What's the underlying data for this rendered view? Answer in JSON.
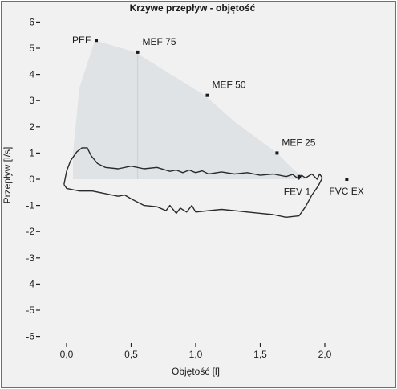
{
  "chart_data": {
    "type": "line",
    "title": "Krzywe przepływ - objętość",
    "xlabel": "Objętość [l]",
    "ylabel": "Przepływ [l/s]",
    "xlim": [
      -0.15,
      2.3
    ],
    "ylim": [
      -6.3,
      6.3
    ],
    "x_ticks": [
      {
        "value": 0.0,
        "label": "0,0"
      },
      {
        "value": 0.5,
        "label": "0,5"
      },
      {
        "value": 1.0,
        "label": "1,0"
      },
      {
        "value": 1.5,
        "label": "1,5"
      },
      {
        "value": 2.0,
        "label": "2,0"
      }
    ],
    "y_ticks": [
      {
        "value": 6,
        "label": "6"
      },
      {
        "value": 5,
        "label": "5"
      },
      {
        "value": 4,
        "label": "4"
      },
      {
        "value": 3,
        "label": "3"
      },
      {
        "value": 2,
        "label": "2"
      },
      {
        "value": 1,
        "label": "1"
      },
      {
        "value": 0,
        "label": "0"
      },
      {
        "value": -1,
        "label": "-1"
      },
      {
        "value": -2,
        "label": "-2"
      },
      {
        "value": -3,
        "label": "-3"
      },
      {
        "value": -4,
        "label": "-4"
      },
      {
        "value": -5,
        "label": "-5"
      },
      {
        "value": -6,
        "label": "-6"
      }
    ],
    "grid": false,
    "reference_area": [
      [
        0.05,
        1.0
      ],
      [
        0.1,
        3.5
      ],
      [
        0.22,
        5.3
      ],
      [
        0.53,
        4.85
      ],
      [
        1.07,
        3.2
      ],
      [
        1.3,
        2.2
      ],
      [
        1.63,
        1.0
      ],
      [
        1.75,
        0.4
      ],
      [
        1.85,
        0.0
      ],
      [
        0.05,
        0.0
      ]
    ],
    "reference_points": [
      {
        "label": "PEF",
        "x": 0.23,
        "y": 5.3
      },
      {
        "label": "MEF 75",
        "x": 0.55,
        "y": 4.85
      },
      {
        "label": "MEF 50",
        "x": 1.09,
        "y": 3.2
      },
      {
        "label": "MEF 25",
        "x": 1.63,
        "y": 1.0
      },
      {
        "label": "FEV 1",
        "x": 1.8,
        "y": 0.1
      },
      {
        "label": "FVC EX",
        "x": 2.17,
        "y": 0.0
      }
    ],
    "series": [
      {
        "points": [
          [
            -0.02,
            -0.2
          ],
          [
            0.0,
            0.3
          ],
          [
            0.03,
            0.7
          ],
          [
            0.08,
            1.05
          ],
          [
            0.12,
            1.2
          ],
          [
            0.16,
            1.2
          ],
          [
            0.19,
            0.9
          ],
          [
            0.24,
            0.6
          ],
          [
            0.3,
            0.45
          ],
          [
            0.4,
            0.4
          ],
          [
            0.5,
            0.5
          ],
          [
            0.6,
            0.4
          ],
          [
            0.7,
            0.45
          ],
          [
            0.8,
            0.3
          ],
          [
            0.85,
            0.35
          ],
          [
            0.9,
            0.25
          ],
          [
            0.95,
            0.35
          ],
          [
            1.0,
            0.25
          ],
          [
            1.05,
            0.32
          ],
          [
            1.1,
            0.2
          ],
          [
            1.2,
            0.28
          ],
          [
            1.3,
            0.2
          ],
          [
            1.4,
            0.25
          ],
          [
            1.5,
            0.15
          ],
          [
            1.6,
            0.2
          ],
          [
            1.7,
            0.1
          ],
          [
            1.75,
            0.18
          ],
          [
            1.8,
            0.0
          ],
          [
            1.82,
            0.15
          ],
          [
            1.85,
            0.05
          ],
          [
            1.9,
            0.2
          ],
          [
            1.94,
            0.0
          ],
          [
            1.96,
            0.2
          ],
          [
            1.98,
            0.05
          ],
          [
            1.95,
            -0.25
          ],
          [
            1.9,
            -0.6
          ],
          [
            1.85,
            -1.05
          ],
          [
            1.8,
            -1.4
          ],
          [
            1.7,
            -1.45
          ],
          [
            1.6,
            -1.35
          ],
          [
            1.5,
            -1.3
          ],
          [
            1.4,
            -1.25
          ],
          [
            1.3,
            -1.2
          ],
          [
            1.2,
            -1.15
          ],
          [
            1.1,
            -1.2
          ],
          [
            1.0,
            -1.25
          ],
          [
            0.97,
            -1.0
          ],
          [
            0.93,
            -1.25
          ],
          [
            0.88,
            -1.1
          ],
          [
            0.85,
            -1.3
          ],
          [
            0.8,
            -1.0
          ],
          [
            0.77,
            -1.2
          ],
          [
            0.7,
            -1.05
          ],
          [
            0.6,
            -1.0
          ],
          [
            0.5,
            -0.75
          ],
          [
            0.45,
            -0.6
          ],
          [
            0.4,
            -0.65
          ],
          [
            0.3,
            -0.55
          ],
          [
            0.2,
            -0.45
          ],
          [
            0.1,
            -0.45
          ],
          [
            0.0,
            -0.35
          ],
          [
            -0.02,
            -0.2
          ]
        ]
      }
    ]
  }
}
